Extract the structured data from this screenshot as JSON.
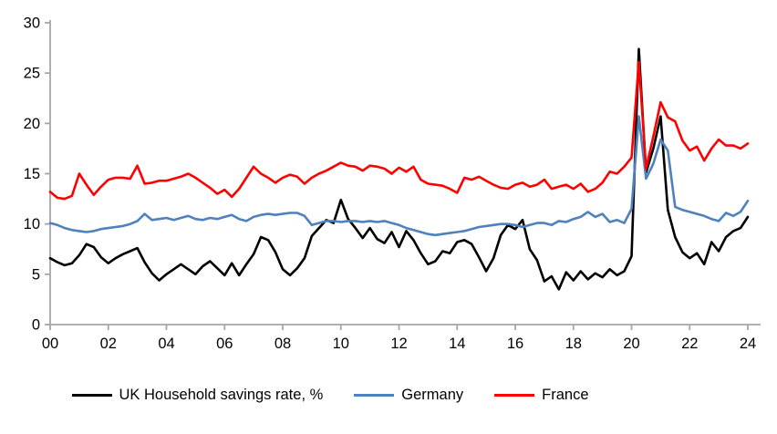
{
  "chart_data": {
    "type": "line",
    "title": "",
    "xlabel": "",
    "ylabel": "",
    "x_unit": "year (quarterly observations, 2000Q1–2024Q1)",
    "x_start": 2000,
    "x_step": 0.25,
    "ylim": [
      0,
      30
    ],
    "y_ticks": [
      0,
      5,
      10,
      15,
      20,
      25,
      30
    ],
    "x_tick_labels": [
      "00",
      "02",
      "04",
      "06",
      "08",
      "10",
      "12",
      "14",
      "16",
      "18",
      "20",
      "22",
      "24"
    ],
    "x_tick_interval_years": 2,
    "grid": false,
    "legend_position": "bottom",
    "axis_color": "#a6a6a6",
    "series": [
      {
        "name": "UK Household savings rate, %",
        "color": "#000000",
        "values": [
          6.6,
          6.2,
          5.9,
          6.1,
          6.9,
          8.0,
          7.7,
          6.7,
          6.1,
          6.6,
          7.0,
          7.3,
          7.6,
          6.2,
          5.1,
          4.4,
          5.0,
          5.5,
          6.0,
          5.5,
          5.0,
          5.8,
          6.3,
          5.6,
          4.9,
          6.1,
          4.9,
          6.0,
          7.0,
          8.7,
          8.4,
          7.2,
          5.5,
          4.9,
          5.6,
          6.6,
          8.8,
          9.6,
          10.4,
          10.1,
          12.4,
          10.5,
          9.6,
          8.6,
          9.6,
          8.5,
          8.1,
          9.2,
          7.7,
          9.3,
          8.4,
          7.1,
          6.0,
          6.3,
          7.3,
          7.1,
          8.2,
          8.4,
          8.0,
          6.7,
          5.3,
          6.6,
          8.9,
          9.9,
          9.5,
          10.4,
          7.5,
          6.4,
          4.3,
          4.8,
          3.5,
          5.2,
          4.4,
          5.3,
          4.5,
          5.1,
          4.7,
          5.5,
          4.9,
          5.3,
          6.8,
          27.4,
          15.1,
          17.5,
          20.7,
          11.4,
          8.7,
          7.2,
          6.6,
          7.1,
          6.0,
          8.2,
          7.3,
          8.7,
          9.3,
          9.6,
          10.7
        ]
      },
      {
        "name": "Germany",
        "color": "#4f81bd",
        "values": [
          10.1,
          9.9,
          9.6,
          9.4,
          9.3,
          9.2,
          9.3,
          9.5,
          9.6,
          9.7,
          9.8,
          10.0,
          10.3,
          11.0,
          10.4,
          10.5,
          10.6,
          10.4,
          10.6,
          10.8,
          10.5,
          10.4,
          10.6,
          10.5,
          10.7,
          10.9,
          10.5,
          10.3,
          10.7,
          10.9,
          11.0,
          10.9,
          11.0,
          11.1,
          11.1,
          10.8,
          9.9,
          10.1,
          10.3,
          10.3,
          10.2,
          10.3,
          10.3,
          10.2,
          10.3,
          10.2,
          10.3,
          10.1,
          9.9,
          9.6,
          9.4,
          9.2,
          9.0,
          8.9,
          9.0,
          9.1,
          9.2,
          9.3,
          9.5,
          9.7,
          9.8,
          9.9,
          10.0,
          10.0,
          9.9,
          9.7,
          9.9,
          10.1,
          10.1,
          9.9,
          10.3,
          10.2,
          10.5,
          10.7,
          11.2,
          10.7,
          11.0,
          10.2,
          10.4,
          10.1,
          11.5,
          20.7,
          14.5,
          16.0,
          18.4,
          17.3,
          11.7,
          11.4,
          11.2,
          11.0,
          10.8,
          10.5,
          10.3,
          11.1,
          10.8,
          11.2,
          12.3
        ]
      },
      {
        "name": "France",
        "color": "#ff0000",
        "values": [
          13.2,
          12.6,
          12.5,
          12.8,
          15.0,
          13.9,
          12.9,
          13.7,
          14.4,
          14.6,
          14.6,
          14.5,
          15.8,
          14.0,
          14.1,
          14.3,
          14.3,
          14.5,
          14.7,
          15.0,
          14.6,
          14.1,
          13.6,
          13.0,
          13.4,
          12.7,
          13.5,
          14.6,
          15.7,
          15.0,
          14.6,
          14.1,
          14.6,
          14.9,
          14.7,
          14.0,
          14.6,
          15.0,
          15.3,
          15.7,
          16.1,
          15.8,
          15.7,
          15.3,
          15.8,
          15.7,
          15.5,
          15.0,
          15.6,
          15.2,
          15.7,
          14.4,
          14.0,
          13.9,
          13.8,
          13.5,
          13.1,
          14.6,
          14.4,
          14.7,
          14.3,
          13.9,
          13.6,
          13.5,
          13.9,
          14.1,
          13.7,
          13.9,
          14.4,
          13.5,
          13.7,
          13.9,
          13.5,
          14.0,
          13.2,
          13.5,
          14.1,
          15.2,
          15.0,
          15.7,
          16.6,
          26.1,
          15.5,
          18.7,
          22.1,
          20.6,
          20.2,
          18.3,
          17.3,
          17.7,
          16.3,
          17.5,
          18.4,
          17.8,
          17.8,
          17.5,
          18.0
        ]
      }
    ]
  },
  "legend": {
    "items": [
      {
        "label": "UK Household savings rate, %"
      },
      {
        "label": "Germany"
      },
      {
        "label": "France"
      }
    ]
  }
}
